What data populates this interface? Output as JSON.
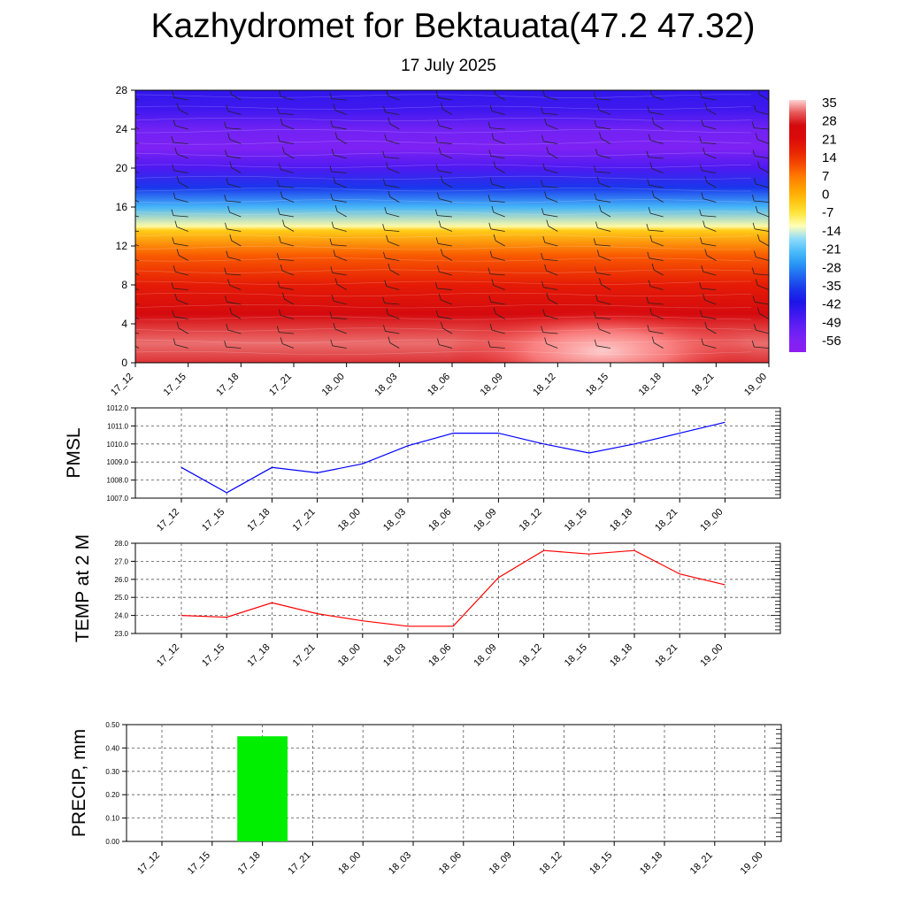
{
  "header": {
    "title": "Kazhydromet for Bektauata(47.2 47.32)",
    "subtitle": "17 July 2025"
  },
  "time_labels": [
    "17_12",
    "17_15",
    "17_18",
    "17_21",
    "18_00",
    "18_03",
    "18_06",
    "18_09",
    "18_12",
    "18_15",
    "18_18",
    "18_21",
    "19_00"
  ],
  "chart_data": [
    {
      "type": "heatmap",
      "name": "temperature-cross-section",
      "x": [
        "17_12",
        "17_15",
        "17_18",
        "17_21",
        "18_00",
        "18_03",
        "18_06",
        "18_09",
        "18_12",
        "18_15",
        "18_18",
        "18_21",
        "19_00"
      ],
      "y_ticks": [
        0,
        4,
        8,
        12,
        16,
        20,
        24,
        28
      ],
      "ylim": [
        0,
        28
      ],
      "colorbar": {
        "labels": [
          "35",
          "28",
          "21",
          "14",
          "7",
          "0",
          "-7",
          "-14",
          "-21",
          "-28",
          "-35",
          "-42",
          "-49",
          "-56"
        ]
      },
      "profile": [
        [
          0,
          30
        ],
        [
          2,
          33
        ],
        [
          5,
          26
        ],
        [
          8,
          18
        ],
        [
          11,
          10
        ],
        [
          13.6,
          -4
        ],
        [
          14,
          -12
        ],
        [
          16,
          -24
        ],
        [
          18,
          -38
        ],
        [
          20,
          -50
        ],
        [
          22,
          -58
        ],
        [
          24,
          -55
        ],
        [
          26,
          -48
        ],
        [
          28,
          -46
        ]
      ],
      "warm_core": {
        "x_center": "18_15",
        "level": 1.2,
        "value": 36
      }
    },
    {
      "type": "line",
      "name": "pmsl",
      "ylabel": "PMSL",
      "x": [
        "17_12",
        "17_15",
        "17_18",
        "17_21",
        "18_00",
        "18_03",
        "18_06",
        "18_09",
        "18_12",
        "18_15",
        "18_18",
        "18_21",
        "19_00"
      ],
      "values": [
        1008.7,
        1007.3,
        1008.7,
        1008.4,
        1008.9,
        1009.9,
        1010.6,
        1010.6,
        1010.0,
        1009.5,
        1010.0,
        1010.6,
        1011.2
      ],
      "ylim": [
        1007.0,
        1012.0
      ],
      "y_ticks": [
        "1007.0",
        "1008.0",
        "1009.0",
        "1010.0",
        "1011.0",
        "1012.0"
      ],
      "color": "#0000ff",
      "grid": true
    },
    {
      "type": "line",
      "name": "temp-2m",
      "ylabel": "TEMP at 2 M",
      "x": [
        "17_12",
        "17_15",
        "17_18",
        "17_21",
        "18_00",
        "18_03",
        "18_06",
        "18_09",
        "18_12",
        "18_15",
        "18_18",
        "18_21",
        "19_00"
      ],
      "values": [
        24.0,
        23.9,
        24.7,
        24.1,
        23.7,
        23.4,
        23.4,
        26.1,
        27.6,
        27.4,
        27.6,
        26.3,
        25.7
      ],
      "ylim": [
        23.0,
        28.0
      ],
      "y_ticks": [
        "23.0",
        "24.0",
        "25.0",
        "26.0",
        "27.0",
        "28.0"
      ],
      "color": "#ff0000",
      "grid": true
    },
    {
      "type": "bar",
      "name": "precip",
      "ylabel": "PRECIP, mm",
      "categories": [
        "17_12",
        "17_15",
        "17_18",
        "17_21",
        "18_00",
        "18_03",
        "18_06",
        "18_09",
        "18_12",
        "18_15",
        "18_18",
        "18_21",
        "19_00"
      ],
      "values": [
        0,
        0,
        0.45,
        0,
        0,
        0,
        0,
        0,
        0,
        0,
        0,
        0,
        0
      ],
      "ylim": [
        0,
        0.5
      ],
      "y_ticks": [
        "0.00",
        "0.10",
        "0.20",
        "0.30",
        "0.40",
        "0.50"
      ],
      "color": "#00ee00",
      "grid": true
    }
  ]
}
